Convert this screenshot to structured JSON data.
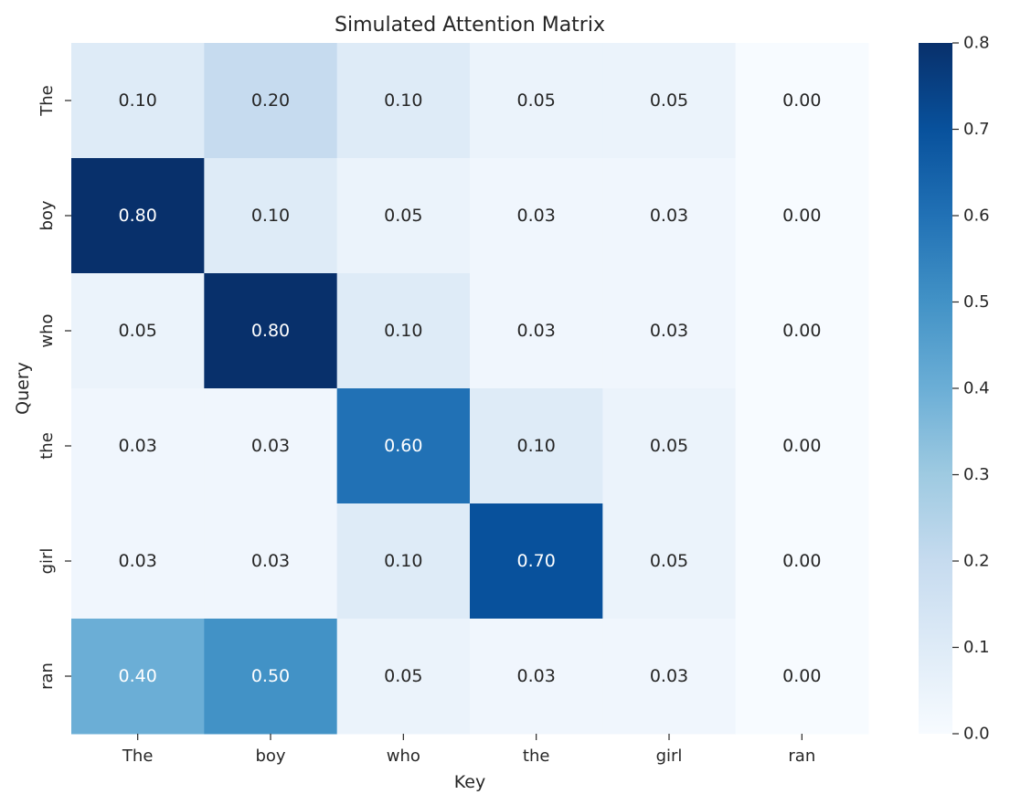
{
  "chart_data": {
    "type": "heatmap",
    "title": "Simulated Attention Matrix",
    "xlabel": "Key",
    "ylabel": "Query",
    "x_categories": [
      "The",
      "boy",
      "who",
      "the",
      "girl",
      "ran"
    ],
    "y_categories": [
      "The",
      "boy",
      "who",
      "the",
      "girl",
      "ran"
    ],
    "values": [
      [
        0.1,
        0.2,
        0.1,
        0.05,
        0.05,
        0.0
      ],
      [
        0.8,
        0.1,
        0.05,
        0.03,
        0.03,
        0.0
      ],
      [
        0.05,
        0.8,
        0.1,
        0.03,
        0.03,
        0.0
      ],
      [
        0.03,
        0.03,
        0.6,
        0.1,
        0.05,
        0.0
      ],
      [
        0.03,
        0.03,
        0.1,
        0.7,
        0.05,
        0.0
      ],
      [
        0.4,
        0.5,
        0.05,
        0.03,
        0.03,
        0.0
      ]
    ],
    "value_format_decimals": 2,
    "colormap": "Blues",
    "color_range": [
      0.0,
      0.8
    ],
    "colorbar_ticks": [
      "0.0",
      "0.1",
      "0.2",
      "0.3",
      "0.4",
      "0.5",
      "0.6",
      "0.7",
      "0.8"
    ],
    "colorbar_tick_values": [
      0.0,
      0.1,
      0.2,
      0.3,
      0.4,
      0.5,
      0.6,
      0.7,
      0.8
    ],
    "colormap_stops": [
      "#f7fbff",
      "#deebf7",
      "#c6dbef",
      "#9ecae1",
      "#6baed6",
      "#4292c6",
      "#2171b5",
      "#08519c",
      "#08306b"
    ],
    "annotation_dark_text_color": "#262626",
    "annotation_light_text_color": "#ffffff",
    "grid": false
  }
}
